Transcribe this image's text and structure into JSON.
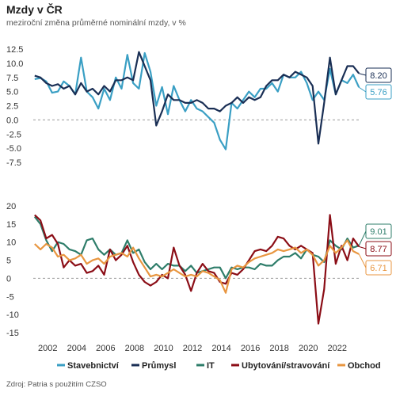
{
  "header": {
    "title": "Mzdy v ČR",
    "subtitle": "meziroční změna průměrné nominální mzdy, v %"
  },
  "source": "Zdroj: Patria s použitím CZSO",
  "colors": {
    "stavebnictvi": "#3a9fc4",
    "prumysl": "#1a2f55",
    "it": "#2e7d6a",
    "ubytovani": "#8b0d16",
    "obchod": "#e89640"
  },
  "chart_data": [
    {
      "type": "line",
      "xlabel": "",
      "ylabel": "",
      "xlim": [
        2001,
        2023.6
      ],
      "ylim": [
        -7.5,
        12.5
      ],
      "y_ticks": [
        "12.5",
        "10.0",
        "7.5",
        "5.0",
        "2.5",
        "0.0",
        "-2.5",
        "-5.0",
        "-7.5"
      ],
      "y_tick_values": [
        12.5,
        10,
        7.5,
        5,
        2.5,
        0,
        -2.5,
        -5,
        -7.5
      ],
      "x_ticks": [
        "2002",
        "2004",
        "2006",
        "2008",
        "2010",
        "2012",
        "2014",
        "2016",
        "2018",
        "2020",
        "2022"
      ],
      "series": [
        {
          "name": "Stavebnictví",
          "color": "#3a9fc4",
          "last_label": "5.76",
          "x": [
            2001.1,
            2001.5,
            2001.9,
            2002.3,
            2002.7,
            2003.1,
            2003.5,
            2003.9,
            2004.3,
            2004.7,
            2005.1,
            2005.5,
            2005.9,
            2006.3,
            2006.7,
            2007.1,
            2007.5,
            2007.9,
            2008.3,
            2008.7,
            2009.1,
            2009.5,
            2009.9,
            2010.3,
            2010.7,
            2011.1,
            2011.5,
            2011.9,
            2012.3,
            2012.7,
            2013.1,
            2013.5,
            2013.9,
            2014.3,
            2014.7,
            2015.1,
            2015.5,
            2015.9,
            2016.3,
            2016.7,
            2017.1,
            2017.5,
            2017.9,
            2018.3,
            2018.7,
            2019.1,
            2019.5,
            2019.9,
            2020.3,
            2020.7,
            2021.1,
            2021.5,
            2021.9,
            2022.3,
            2022.7,
            2023.1,
            2023.5
          ],
          "y": [
            7.2,
            7.4,
            6.8,
            4.8,
            5.0,
            6.8,
            6.0,
            4.5,
            11.0,
            5.0,
            4.0,
            2.0,
            5.5,
            3.5,
            7.5,
            5.5,
            11.5,
            6.5,
            5.5,
            11.8,
            8.5,
            2.5,
            5.8,
            1.0,
            6.0,
            3.5,
            1.5,
            3.5,
            2.0,
            1.5,
            0.5,
            -0.5,
            -3.5,
            -5.2,
            3.0,
            2.0,
            3.5,
            5.0,
            4.0,
            5.5,
            5.5,
            6.5,
            5.0,
            8.0,
            7.5,
            7.5,
            8.5,
            6.5,
            3.5,
            5.0,
            3.5,
            9.0,
            4.5,
            7.0,
            6.5,
            8.0,
            5.76
          ]
        },
        {
          "name": "Průmysl",
          "color": "#1a2f55",
          "last_label": "8.20",
          "x": [
            2001.1,
            2001.5,
            2001.9,
            2002.3,
            2002.7,
            2003.1,
            2003.5,
            2003.9,
            2004.3,
            2004.7,
            2005.1,
            2005.5,
            2005.9,
            2006.3,
            2006.7,
            2007.1,
            2007.5,
            2007.9,
            2008.3,
            2008.7,
            2009.1,
            2009.5,
            2009.9,
            2010.3,
            2010.7,
            2011.1,
            2011.5,
            2011.9,
            2012.3,
            2012.7,
            2013.1,
            2013.5,
            2013.9,
            2014.3,
            2014.7,
            2015.1,
            2015.5,
            2015.9,
            2016.3,
            2016.7,
            2017.1,
            2017.5,
            2017.9,
            2018.3,
            2018.7,
            2019.1,
            2019.5,
            2019.9,
            2020.3,
            2020.7,
            2021.1,
            2021.5,
            2021.9,
            2022.3,
            2022.7,
            2023.1,
            2023.5
          ],
          "y": [
            7.8,
            7.5,
            6.5,
            6.0,
            6.3,
            5.5,
            6.0,
            4.5,
            6.5,
            5.0,
            5.5,
            4.5,
            6.0,
            5.0,
            7.0,
            7.0,
            7.5,
            7.0,
            12.0,
            9.5,
            7.0,
            -1.0,
            1.5,
            4.5,
            3.5,
            3.5,
            3.0,
            3.0,
            3.5,
            3.0,
            2.0,
            2.0,
            1.5,
            2.5,
            3.0,
            4.0,
            3.0,
            4.0,
            3.5,
            4.0,
            6.0,
            7.0,
            7.0,
            8.0,
            7.5,
            8.5,
            8.0,
            7.5,
            6.0,
            -4.2,
            3.0,
            11.0,
            4.5,
            7.0,
            9.5,
            9.5,
            8.2
          ]
        }
      ]
    },
    {
      "type": "line",
      "xlabel": "",
      "ylabel": "",
      "xlim": [
        2001,
        2023.6
      ],
      "ylim": [
        -15,
        20
      ],
      "y_ticks": [
        "20",
        "15",
        "10",
        "5",
        "0",
        "-5",
        "-10",
        "-15"
      ],
      "y_tick_values": [
        20,
        15,
        10,
        5,
        0,
        -5,
        -10,
        -15
      ],
      "x_ticks": [
        "2002",
        "2004",
        "2006",
        "2008",
        "2010",
        "2012",
        "2014",
        "2016",
        "2018",
        "2020",
        "2022"
      ],
      "series": [
        {
          "name": "IT",
          "color": "#2e7d6a",
          "last_label": "9.01",
          "x": [
            2001.1,
            2001.5,
            2001.9,
            2002.3,
            2002.7,
            2003.1,
            2003.5,
            2003.9,
            2004.3,
            2004.7,
            2005.1,
            2005.5,
            2005.9,
            2006.3,
            2006.7,
            2007.1,
            2007.5,
            2007.9,
            2008.3,
            2008.7,
            2009.1,
            2009.5,
            2009.9,
            2010.3,
            2010.7,
            2011.1,
            2011.5,
            2011.9,
            2012.3,
            2012.7,
            2013.1,
            2013.5,
            2013.9,
            2014.3,
            2014.7,
            2015.1,
            2015.5,
            2015.9,
            2016.3,
            2016.7,
            2017.1,
            2017.5,
            2017.9,
            2018.3,
            2018.7,
            2019.1,
            2019.5,
            2019.9,
            2020.3,
            2020.7,
            2021.1,
            2021.5,
            2021.9,
            2022.3,
            2022.7,
            2023.1,
            2023.5
          ],
          "y": [
            17.0,
            15.0,
            10.5,
            7.5,
            10.0,
            9.5,
            8.0,
            7.5,
            6.5,
            10.5,
            11.0,
            8.0,
            6.5,
            8.0,
            6.5,
            7.0,
            10.5,
            7.0,
            8.0,
            4.5,
            2.5,
            4.0,
            2.5,
            4.0,
            3.5,
            3.5,
            2.0,
            3.5,
            1.5,
            2.0,
            2.5,
            3.0,
            3.0,
            0.0,
            3.0,
            2.5,
            3.0,
            3.0,
            2.5,
            4.0,
            3.5,
            3.5,
            5.0,
            6.0,
            6.0,
            7.0,
            5.5,
            8.0,
            6.5,
            6.0,
            4.5,
            10.5,
            9.0,
            8.0,
            11.0,
            8.5,
            9.01
          ]
        },
        {
          "name": "Ubytování/stravování",
          "color": "#8b0d16",
          "last_label": "8.77",
          "x": [
            2001.1,
            2001.5,
            2001.9,
            2002.3,
            2002.7,
            2003.1,
            2003.5,
            2003.9,
            2004.3,
            2004.7,
            2005.1,
            2005.5,
            2005.9,
            2006.3,
            2006.7,
            2007.1,
            2007.5,
            2007.9,
            2008.3,
            2008.7,
            2009.1,
            2009.5,
            2009.9,
            2010.3,
            2010.7,
            2011.1,
            2011.5,
            2011.9,
            2012.3,
            2012.7,
            2013.1,
            2013.5,
            2013.9,
            2014.3,
            2014.7,
            2015.1,
            2015.5,
            2015.9,
            2016.3,
            2016.7,
            2017.1,
            2017.5,
            2017.9,
            2018.3,
            2018.7,
            2019.1,
            2019.5,
            2019.9,
            2020.3,
            2020.7,
            2021.1,
            2021.5,
            2021.9,
            2022.3,
            2022.7,
            2023.1,
            2023.5
          ],
          "y": [
            17.5,
            16.0,
            11.0,
            12.0,
            9.5,
            3.0,
            5.0,
            3.5,
            4.0,
            1.5,
            2.0,
            3.5,
            1.0,
            8.0,
            5.0,
            6.5,
            9.0,
            4.5,
            1.0,
            -1.0,
            -2.0,
            -1.0,
            1.0,
            0.0,
            8.5,
            3.5,
            1.0,
            -3.5,
            1.5,
            4.0,
            2.0,
            1.5,
            -1.0,
            -1.5,
            1.5,
            1.0,
            2.5,
            5.0,
            7.5,
            8.0,
            7.5,
            9.0,
            11.5,
            11.0,
            9.0,
            8.0,
            9.0,
            8.0,
            7.0,
            -12.5,
            -3.0,
            17.5,
            4.0,
            9.0,
            5.0,
            11.0,
            8.77
          ]
        },
        {
          "name": "Obchod",
          "color": "#e89640",
          "last_label": "6.71",
          "x": [
            2001.1,
            2001.5,
            2001.9,
            2002.3,
            2002.7,
            2003.1,
            2003.5,
            2003.9,
            2004.3,
            2004.7,
            2005.1,
            2005.5,
            2005.9,
            2006.3,
            2006.7,
            2007.1,
            2007.5,
            2007.9,
            2008.3,
            2008.7,
            2009.1,
            2009.5,
            2009.9,
            2010.3,
            2010.7,
            2011.1,
            2011.5,
            2011.9,
            2012.3,
            2012.7,
            2013.1,
            2013.5,
            2013.9,
            2014.3,
            2014.7,
            2015.1,
            2015.5,
            2015.9,
            2016.3,
            2016.7,
            2017.1,
            2017.5,
            2017.9,
            2018.3,
            2018.7,
            2019.1,
            2019.5,
            2019.9,
            2020.3,
            2020.7,
            2021.1,
            2021.5,
            2021.9,
            2022.3,
            2022.7,
            2023.1,
            2023.5
          ],
          "y": [
            9.5,
            8.0,
            9.5,
            8.5,
            6.0,
            6.5,
            5.0,
            5.5,
            6.5,
            4.0,
            5.0,
            5.5,
            4.0,
            6.0,
            6.5,
            7.0,
            6.0,
            8.5,
            5.5,
            3.0,
            0.5,
            1.0,
            0.5,
            1.5,
            2.5,
            1.5,
            0.5,
            1.0,
            0.5,
            2.0,
            1.5,
            0.5,
            -0.5,
            -4.0,
            2.5,
            3.5,
            3.0,
            4.5,
            5.5,
            6.0,
            6.5,
            7.0,
            8.0,
            7.5,
            8.0,
            8.5,
            7.0,
            8.0,
            6.5,
            3.5,
            5.0,
            9.0,
            7.0,
            8.5,
            10.5,
            7.5,
            6.71
          ]
        }
      ]
    }
  ]
}
